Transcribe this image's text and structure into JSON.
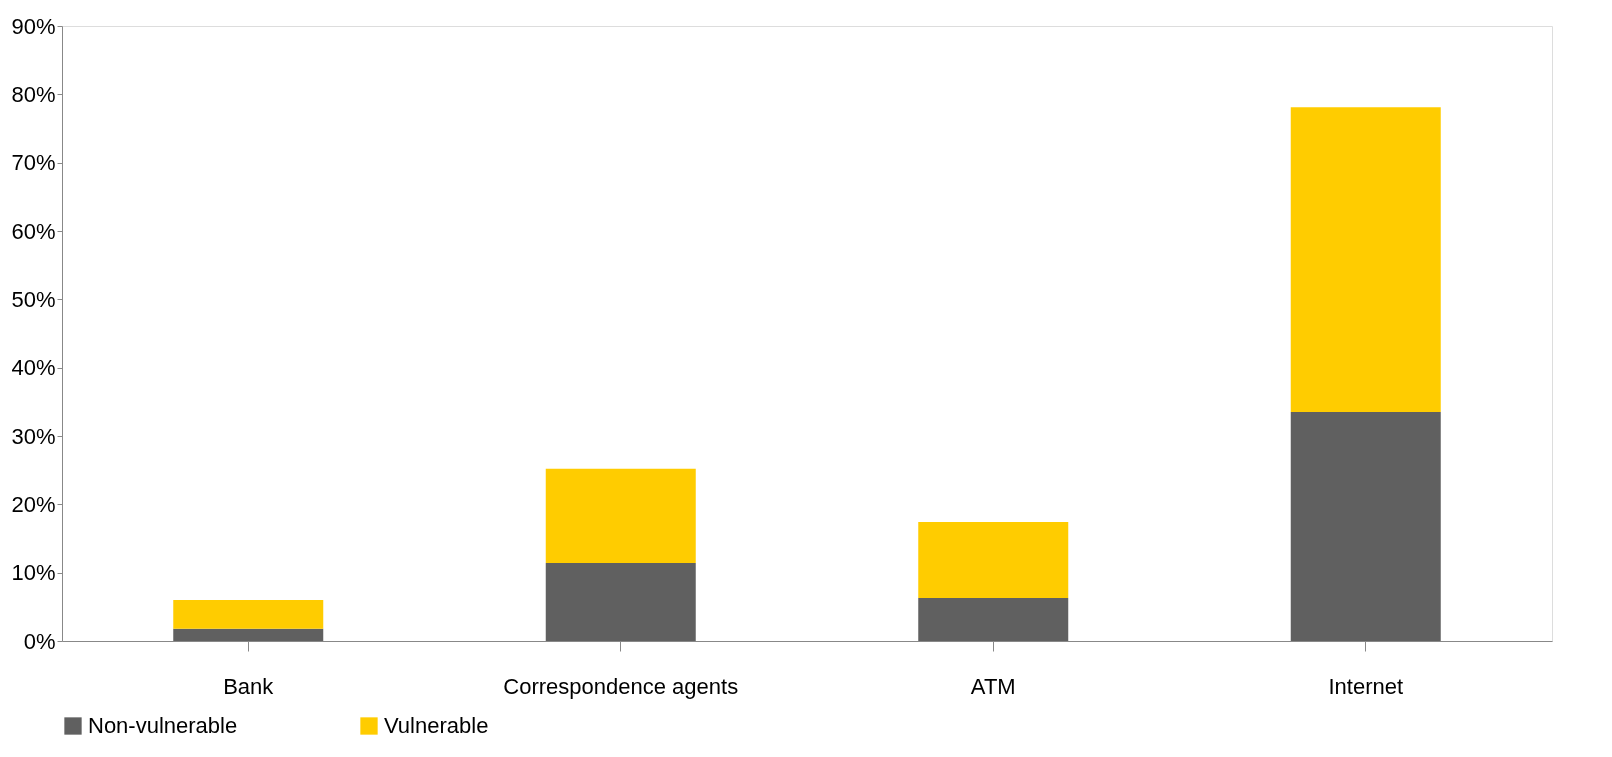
{
  "chart_data": {
    "type": "bar",
    "stacked": true,
    "categories": [
      "Bank",
      "Correspondence agents",
      "ATM",
      "Internet"
    ],
    "series": [
      {
        "name": "Non-vulnerable",
        "color": "#606060",
        "values": [
          1.8,
          11.4,
          6.3,
          33.5
        ]
      },
      {
        "name": "Vulnerable",
        "color": "#ffcc00",
        "values": [
          4.2,
          13.8,
          11.1,
          44.6
        ]
      }
    ],
    "ylim": [
      0,
      90
    ],
    "yticks": [
      {
        "value": 0,
        "label": "0%"
      },
      {
        "value": 10,
        "label": "10%"
      },
      {
        "value": 20,
        "label": "20%"
      },
      {
        "value": 30,
        "label": "30%"
      },
      {
        "value": 40,
        "label": "40%"
      },
      {
        "value": 50,
        "label": "50%"
      },
      {
        "value": 60,
        "label": "60%"
      },
      {
        "value": 70,
        "label": "70%"
      },
      {
        "value": 80,
        "label": "80%"
      },
      {
        "value": 90,
        "label": "90%"
      }
    ],
    "grid": false,
    "legend": "bottom"
  }
}
